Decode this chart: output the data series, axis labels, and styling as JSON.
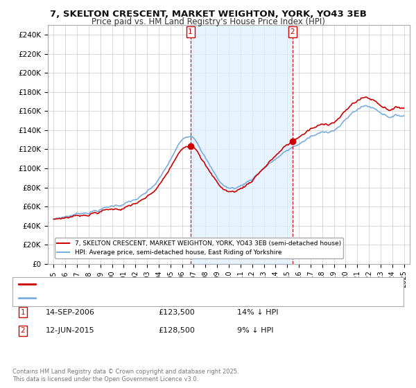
{
  "title": "7, SKELTON CRESCENT, MARKET WEIGHTON, YORK, YO43 3EB",
  "subtitle": "Price paid vs. HM Land Registry's House Price Index (HPI)",
  "ylabel_ticks": [
    "£0",
    "£20K",
    "£40K",
    "£60K",
    "£80K",
    "£100K",
    "£120K",
    "£140K",
    "£160K",
    "£180K",
    "£200K",
    "£220K",
    "£240K"
  ],
  "ytick_values": [
    0,
    20000,
    40000,
    60000,
    80000,
    100000,
    120000,
    140000,
    160000,
    180000,
    200000,
    220000,
    240000
  ],
  "ylim": [
    0,
    250000
  ],
  "xlim_start": 1994.5,
  "xlim_end": 2025.5,
  "xticks": [
    1995,
    1996,
    1997,
    1998,
    1999,
    2000,
    2001,
    2002,
    2003,
    2004,
    2005,
    2006,
    2007,
    2008,
    2009,
    2010,
    2011,
    2012,
    2013,
    2014,
    2015,
    2016,
    2017,
    2018,
    2019,
    2020,
    2021,
    2022,
    2023,
    2024,
    2025
  ],
  "legend_line1": "7, SKELTON CRESCENT, MARKET WEIGHTON, YORK, YO43 3EB (semi-detached house)",
  "legend_line2": "HPI: Average price, semi-detached house, East Riding of Yorkshire",
  "sale1_label": "1",
  "sale1_date": "14-SEP-2006",
  "sale1_price": "£123,500",
  "sale1_hpi": "14% ↓ HPI",
  "sale1_year": 2006.71,
  "sale1_value": 123500,
  "sale2_label": "2",
  "sale2_date": "12-JUN-2015",
  "sale2_price": "£128,500",
  "sale2_hpi": "9% ↓ HPI",
  "sale2_year": 2015.45,
  "sale2_value": 128500,
  "red_color": "#cc0000",
  "blue_color": "#7aaddb",
  "shade_color": "#ddeeff",
  "vline_color": "#cc0000",
  "bg_color": "#ffffff",
  "grid_color": "#cccccc",
  "copyright": "Contains HM Land Registry data © Crown copyright and database right 2025.\nThis data is licensed under the Open Government Licence v3.0."
}
